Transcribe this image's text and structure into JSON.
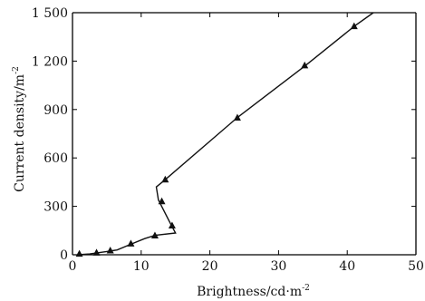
{
  "chart_data": {
    "type": "line",
    "title": "",
    "xlabel": "Brightness/cd·m",
    "xlabel_superscript": "-2",
    "ylabel": "Current density/m",
    "ylabel_superscript": "-2",
    "xlim": [
      0,
      50
    ],
    "ylim": [
      0,
      1500
    ],
    "x_ticks": [
      0,
      10,
      20,
      30,
      40,
      50
    ],
    "y_ticks": [
      0,
      300,
      600,
      900,
      1200,
      1500
    ],
    "x_tick_labels": [
      "0",
      "10",
      "20",
      "30",
      "40",
      "50"
    ],
    "y_tick_labels": [
      "0",
      "300",
      "600",
      "900",
      "1 200",
      "1 500"
    ],
    "grid": false,
    "series": [
      {
        "line": [
          [
            0.8,
            0
          ],
          [
            2.5,
            5
          ],
          [
            5.0,
            20
          ],
          [
            6.5,
            30
          ],
          [
            8.5,
            65
          ],
          [
            10.5,
            100
          ],
          [
            12.0,
            120
          ],
          [
            15.0,
            135
          ],
          [
            14.3,
            190
          ],
          [
            12.5,
            340
          ],
          [
            12.2,
            420
          ],
          [
            13.5,
            465
          ],
          [
            24.0,
            850
          ],
          [
            34.0,
            1175
          ],
          [
            41.0,
            1415
          ],
          [
            43.8,
            1500
          ]
        ],
        "markers": [
          [
            1.0,
            5
          ],
          [
            3.5,
            12
          ],
          [
            5.5,
            25
          ],
          [
            8.5,
            68
          ],
          [
            12.0,
            118
          ],
          [
            14.5,
            180
          ],
          [
            13.0,
            330
          ],
          [
            13.5,
            465
          ],
          [
            24.0,
            848
          ],
          [
            33.8,
            1172
          ],
          [
            41.0,
            1415
          ]
        ]
      }
    ]
  }
}
